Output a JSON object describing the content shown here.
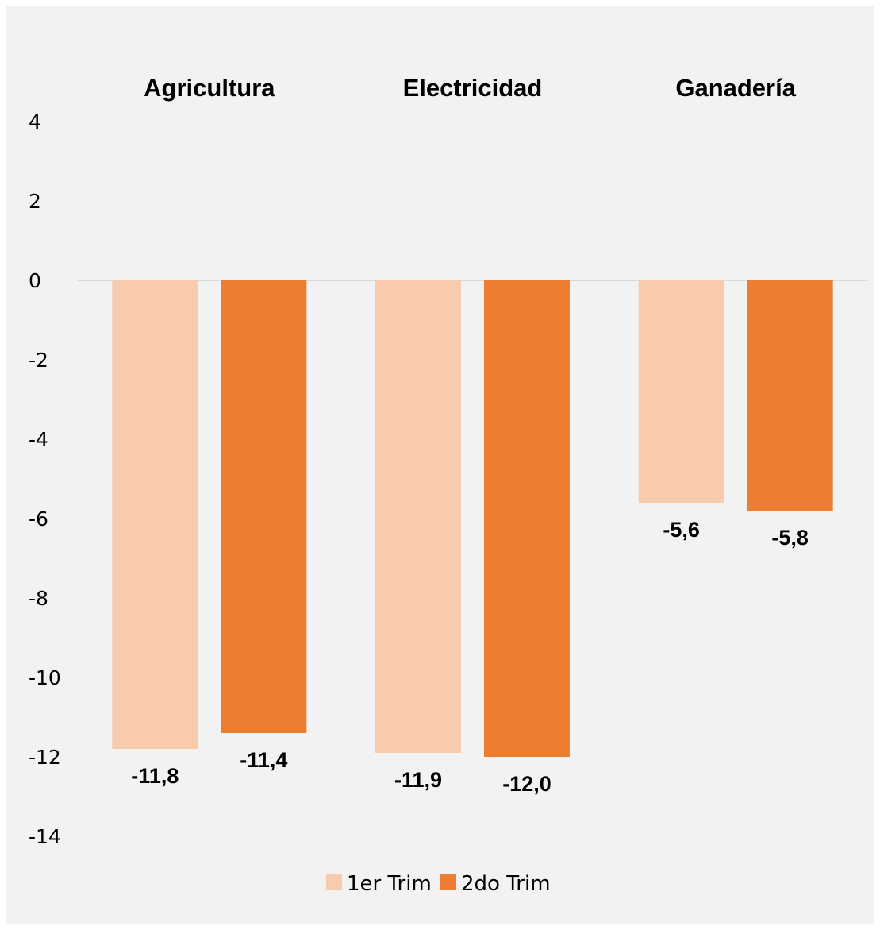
{
  "chart_data": {
    "type": "bar",
    "title": "",
    "xlabel": "",
    "ylabel": "",
    "categories": [
      "Agricultura",
      "Electricidad",
      "Ganadería"
    ],
    "series": [
      {
        "name": "1er Trim",
        "values": [
          -11.8,
          -11.9,
          -5.6
        ],
        "labels": [
          "-11,8",
          "-11,9",
          "-5,6"
        ],
        "color": "#f8cbad"
      },
      {
        "name": "2do Trim",
        "values": [
          -11.4,
          -12.0,
          -5.8
        ],
        "labels": [
          "-11,4",
          "-12,0",
          "-5,8"
        ],
        "color": "#ed7d31"
      }
    ],
    "ylim": [
      -14,
      4
    ],
    "yticks": [
      4,
      2,
      0,
      -2,
      -4,
      -6,
      -8,
      -10,
      -12,
      -14
    ],
    "ytick_labels": [
      "4",
      "2",
      "0",
      "-2",
      "-4",
      "-6",
      "-8",
      "-10",
      "-12",
      "-14"
    ],
    "grid": false,
    "legend": "bottom",
    "category_labels_position": "top",
    "background": "#f2f2f2",
    "zero_line_color": "#d9d9d9"
  }
}
